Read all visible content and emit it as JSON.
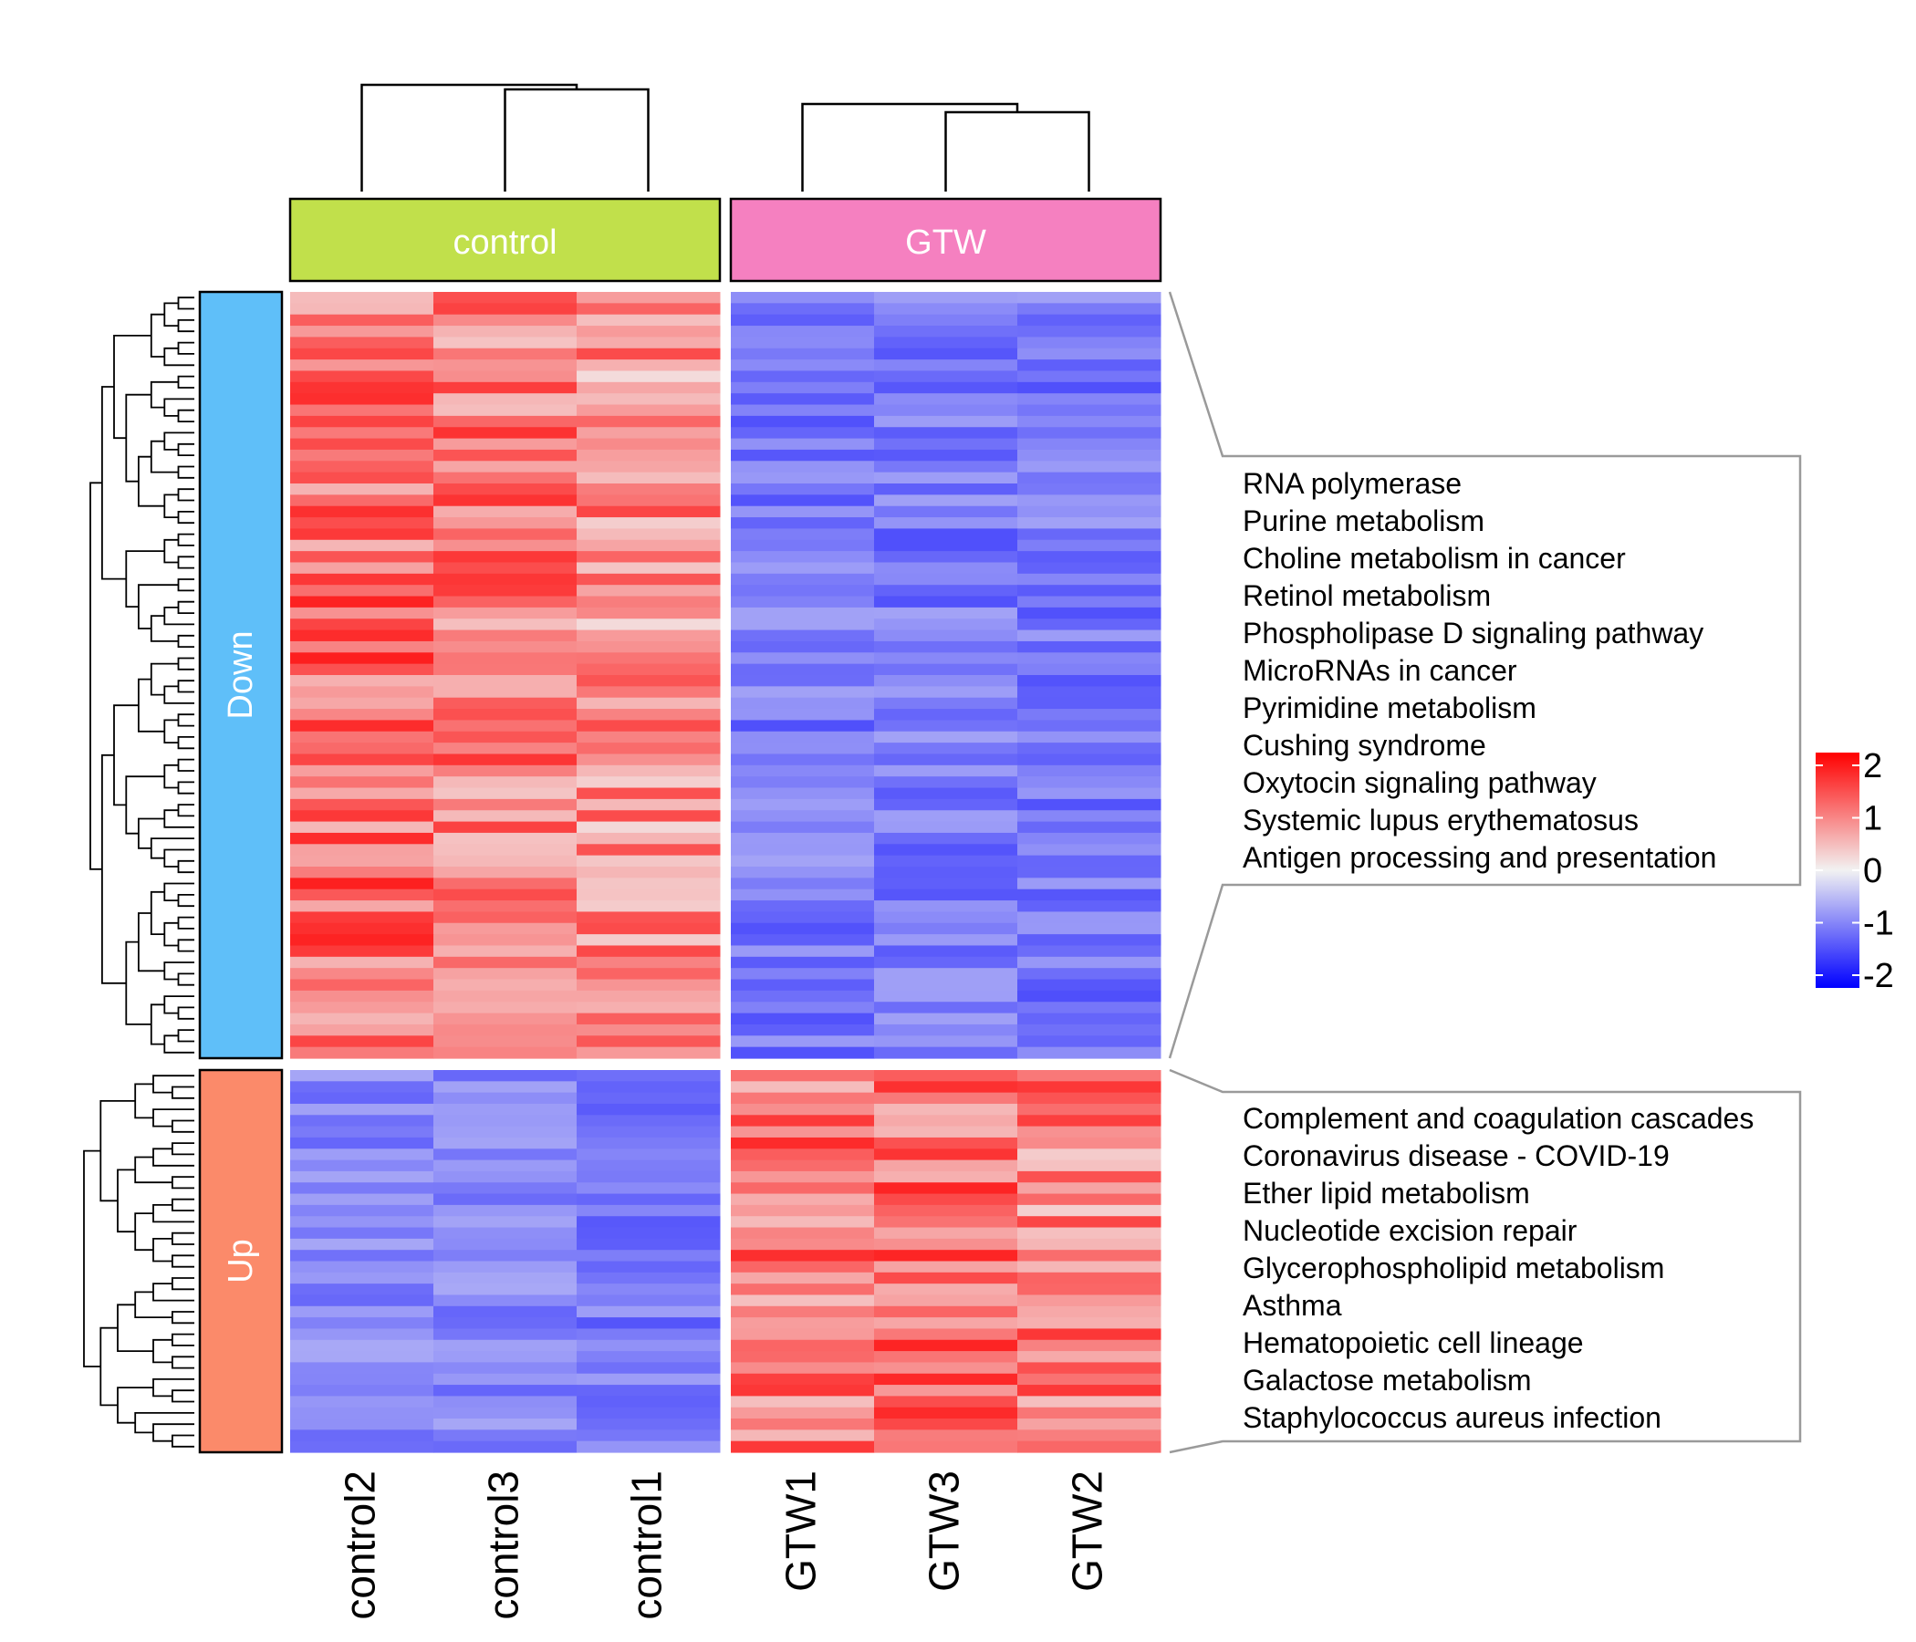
{
  "chart_data": {
    "type": "heatmap",
    "column_groups": [
      {
        "label": "control",
        "color": "#c1e04b",
        "columns": [
          "control2",
          "control3",
          "control1"
        ]
      },
      {
        "label": "GTW",
        "color": "#f580c0",
        "columns": [
          "GTW1",
          "GTW3",
          "GTW2"
        ]
      }
    ],
    "row_groups": [
      {
        "label": "Down",
        "color": "#5fbff9",
        "n_rows": 68,
        "pattern": "control high, GTW low"
      },
      {
        "label": "Up",
        "color": "#fb8a6a",
        "n_rows": 34,
        "pattern": "control low, GTW high"
      }
    ],
    "color_scale": {
      "min": -2,
      "max": 2,
      "low": "#0000ff",
      "mid": "#f2f2f2",
      "high": "#ff0000",
      "ticks": [
        "2",
        "1",
        "0",
        "-1",
        "-2"
      ]
    },
    "annotations": [
      {
        "group": "Down",
        "terms": [
          "RNA polymerase",
          "Purine metabolism",
          "Choline metabolism in cancer",
          "Retinol metabolism",
          "Phospholipase D signaling pathway",
          "MicroRNAs in cancer",
          "Pyrimidine metabolism",
          "Cushing syndrome",
          "Oxytocin signaling pathway",
          "Systemic lupus erythematosus",
          "Antigen processing and presentation"
        ]
      },
      {
        "group": "Up",
        "terms": [
          "Complement and coagulation cascades",
          "Coronavirus disease - COVID-19",
          "Ether lipid metabolism",
          "Nucleotide excision repair",
          "Glycerophospholipid metabolism",
          "Asthma",
          "Hematopoietic cell lineage",
          "Galactose metabolism",
          "Staphylococcus aureus infection"
        ]
      }
    ],
    "column_means": {
      "Down": [
        1.1,
        1.0,
        0.8,
        -1.0,
        -1.0,
        -1.0
      ],
      "Up": [
        -0.9,
        -0.9,
        -1.0,
        1.0,
        1.1,
        0.9
      ]
    }
  }
}
